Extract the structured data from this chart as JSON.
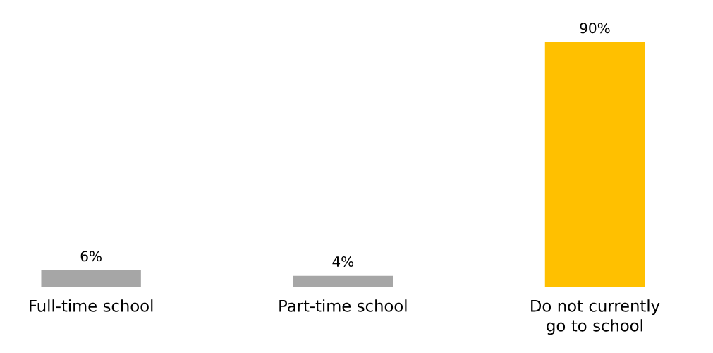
{
  "chart_data": {
    "type": "bar",
    "categories": [
      "Full-time school",
      "Part-time school",
      "Do not currently go to school"
    ],
    "values": [
      6,
      4,
      90
    ],
    "colors": [
      "#a6a6a6",
      "#a6a6a6",
      "#ffc000"
    ],
    "value_labels": [
      "6%",
      "4%",
      "90%"
    ]
  }
}
